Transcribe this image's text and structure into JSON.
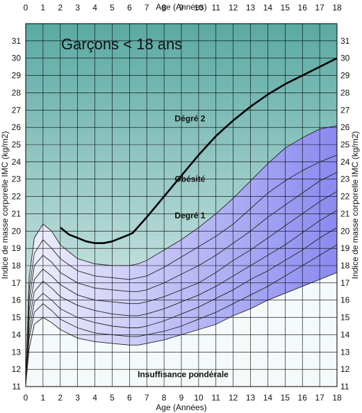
{
  "chart_data": {
    "type": "line",
    "title": "Garçons < 18 ans",
    "xlabel": "Age (Années)",
    "ylabel": "Indice de masse corporelle IMC (kg/m2)",
    "xlim": [
      0,
      18
    ],
    "ylim": [
      11,
      32
    ],
    "x_ticks": [
      "0",
      "1",
      "2",
      "3",
      "4",
      "5",
      "6",
      "7",
      "8",
      "9",
      "10",
      "11",
      "12",
      "13",
      "14",
      "15",
      "16",
      "17",
      "18"
    ],
    "y_ticks": [
      "11",
      "12",
      "13",
      "14",
      "15",
      "16",
      "17",
      "18",
      "19",
      "20",
      "21",
      "22",
      "23",
      "24",
      "25",
      "26",
      "27",
      "28",
      "29",
      "30",
      "31"
    ],
    "grid": true,
    "annotations": [
      {
        "text": "Dégré 2",
        "x": 9.5,
        "y": 26.5
      },
      {
        "text": "Obésité",
        "x": 9.5,
        "y": 23.0
      },
      {
        "text": "Degré 1",
        "x": 9.5,
        "y": 20.9
      },
      {
        "text": "Insuffisance pondérale",
        "x": 9.1,
        "y": 11.7
      }
    ],
    "colors": {
      "top_gradient_top": "#5aa9a3",
      "top_gradient_bottom": "#eef7f6",
      "bottom_zone": "#f4f9f9",
      "band_light": "#f0f0fc",
      "band_dark": "#8a8af0",
      "curve": "#000000",
      "grid": "#000000"
    },
    "x": [
      0,
      0.2,
      0.5,
      1,
      1.5,
      2,
      3,
      4,
      5,
      6,
      6.5,
      7,
      8,
      9,
      10,
      11,
      12,
      13,
      14,
      15,
      16,
      17,
      18
    ],
    "series": [
      {
        "role": "percentile-upper",
        "values": [
          11.1,
          17.3,
          19.6,
          20.4,
          20.0,
          19.2,
          18.4,
          18.1,
          18.0,
          18.0,
          18.1,
          18.3,
          18.9,
          19.5,
          20.2,
          21.0,
          21.9,
          22.9,
          23.9,
          24.8,
          25.4,
          25.9,
          26.1
        ]
      },
      {
        "role": "percentile",
        "values": [
          11.1,
          16.6,
          18.7,
          19.5,
          19.0,
          18.4,
          17.7,
          17.4,
          17.3,
          17.2,
          17.3,
          17.4,
          17.9,
          18.5,
          19.1,
          19.7,
          20.4,
          21.3,
          22.2,
          22.9,
          23.5,
          24.0,
          24.4
        ]
      },
      {
        "role": "percentile",
        "values": [
          11.1,
          16.0,
          18.0,
          18.6,
          18.2,
          17.6,
          17.0,
          16.7,
          16.6,
          16.5,
          16.5,
          16.6,
          17.0,
          17.5,
          18.0,
          18.6,
          19.3,
          20.0,
          20.8,
          21.5,
          22.2,
          22.9,
          23.4
        ]
      },
      {
        "role": "percentile",
        "values": [
          11.1,
          15.4,
          17.2,
          17.8,
          17.4,
          16.9,
          16.3,
          16.0,
          15.9,
          15.8,
          15.8,
          15.9,
          16.2,
          16.6,
          17.0,
          17.6,
          18.3,
          18.9,
          19.6,
          20.3,
          21.0,
          21.7,
          22.3
        ]
      },
      {
        "role": "percentile",
        "values": [
          11.1,
          14.8,
          16.5,
          17.1,
          16.7,
          16.2,
          15.7,
          15.4,
          15.2,
          15.1,
          15.1,
          15.2,
          15.5,
          15.9,
          16.3,
          16.8,
          17.4,
          18.0,
          18.6,
          19.2,
          19.9,
          20.6,
          21.2
        ]
      },
      {
        "role": "percentile",
        "values": [
          11.1,
          14.2,
          15.9,
          16.4,
          16.0,
          15.5,
          15.0,
          14.7,
          14.5,
          14.4,
          14.4,
          14.5,
          14.8,
          15.2,
          15.6,
          16.1,
          16.6,
          17.2,
          17.7,
          18.3,
          18.9,
          19.6,
          20.2
        ]
      },
      {
        "role": "percentile",
        "values": [
          11.1,
          13.8,
          15.3,
          15.8,
          15.4,
          14.9,
          14.4,
          14.1,
          14.0,
          13.9,
          13.9,
          14.0,
          14.2,
          14.5,
          14.9,
          15.3,
          15.8,
          16.3,
          16.8,
          17.4,
          18.0,
          18.6,
          19.2
        ]
      },
      {
        "role": "percentile-lower",
        "values": [
          11.1,
          13.2,
          14.6,
          15.0,
          14.7,
          14.3,
          13.8,
          13.6,
          13.5,
          13.4,
          13.4,
          13.5,
          13.7,
          14.0,
          14.3,
          14.6,
          15.1,
          15.5,
          16.0,
          16.4,
          16.8,
          17.2,
          17.6
        ]
      }
    ],
    "obesity_curve": {
      "x": [
        2,
        2.5,
        3,
        3.5,
        4,
        4.5,
        5,
        5.5,
        6,
        6.2,
        7,
        8,
        9,
        10,
        11,
        12,
        13,
        14,
        15,
        16,
        17,
        18
      ],
      "values": [
        20.2,
        19.8,
        19.6,
        19.4,
        19.3,
        19.3,
        19.4,
        19.6,
        19.8,
        19.9,
        20.8,
        22.0,
        23.2,
        24.4,
        25.5,
        26.4,
        27.2,
        27.9,
        28.5,
        29.0,
        29.5,
        30.0
      ]
    }
  }
}
